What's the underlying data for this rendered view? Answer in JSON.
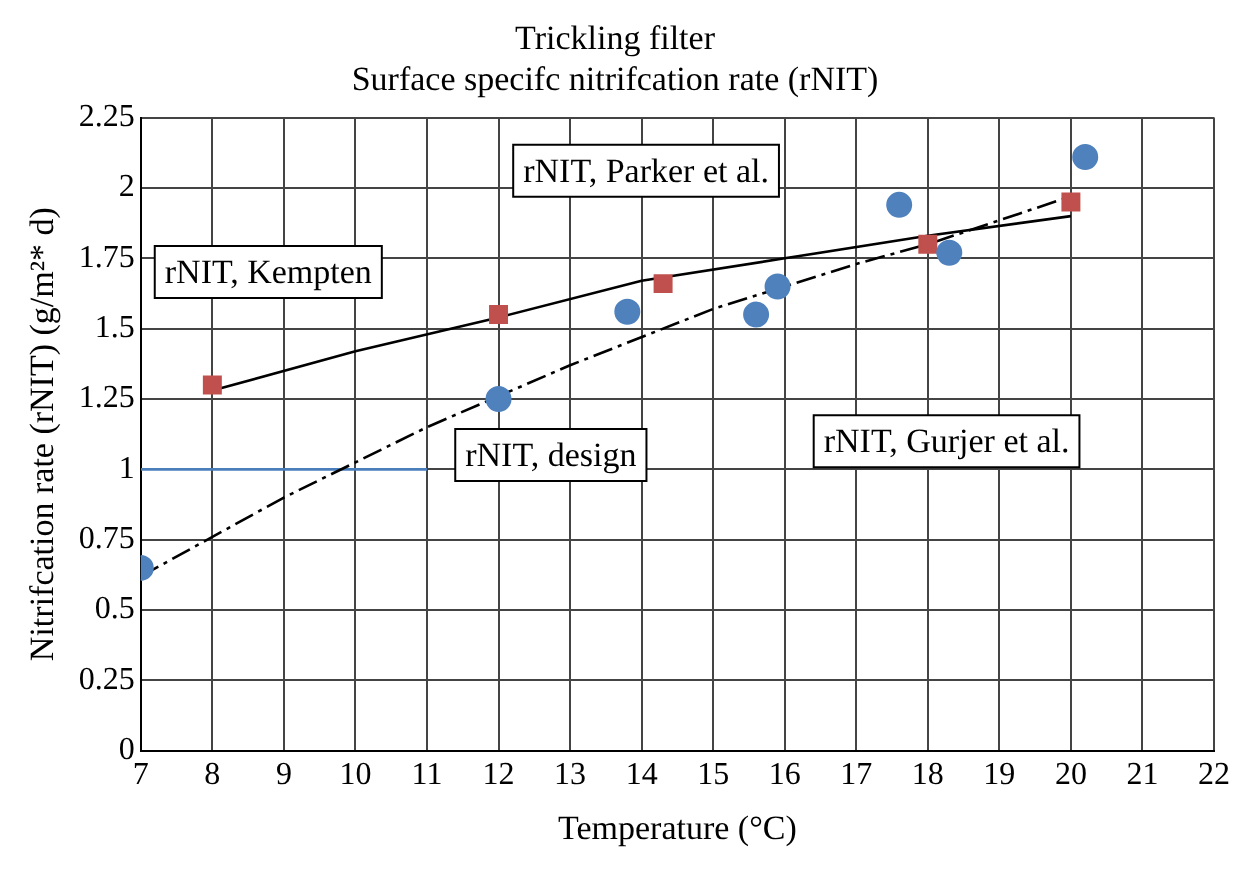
{
  "chart_data": {
    "type": "scatter",
    "title": "Trickling filter",
    "subtitle": "Surface specifc nitrifcation rate (rNIT)",
    "xlabel": "Temperature (°C)",
    "ylabel": "Nitrifcation rate (rNIT) (g/m²* d)",
    "xlim": [
      7,
      22
    ],
    "xticks": [
      7,
      8,
      9,
      10,
      11,
      12,
      13,
      14,
      15,
      16,
      17,
      18,
      19,
      20,
      21,
      22
    ],
    "ylim": [
      0,
      2.25
    ],
    "yticks": [
      0,
      0.25,
      0.5,
      0.75,
      1,
      1.25,
      1.5,
      1.75,
      2,
      2.25
    ],
    "grid": true,
    "legend": false,
    "annotations": [
      "rNIT, Kempten",
      "rNIT, Parker et al.",
      "rNIT, design",
      "rNIT, Gurjer et al."
    ],
    "series": [
      {
        "marker": "circle",
        "color": "#4f81bd",
        "x": [
          7,
          12,
          13.8,
          15.6,
          15.9,
          17.6,
          18.3,
          20.2
        ],
        "values": [
          0.65,
          1.25,
          1.56,
          1.55,
          1.65,
          1.94,
          1.77,
          2.11
        ]
      },
      {
        "marker": "square",
        "color": "#c0504d",
        "x": [
          8,
          12,
          14.3,
          18,
          20
        ],
        "values": [
          1.3,
          1.55,
          1.66,
          1.8,
          1.95
        ]
      },
      {
        "type": "line",
        "marker": "none",
        "line_style": "solid",
        "color": "#000000",
        "x": [
          8,
          10,
          12,
          14,
          16,
          18,
          20
        ],
        "values": [
          1.28,
          1.42,
          1.54,
          1.67,
          1.75,
          1.83,
          1.9
        ]
      },
      {
        "type": "line",
        "marker": "none",
        "line_style": "dashed",
        "color": "#000000",
        "x": [
          7,
          9,
          11,
          13,
          15,
          17,
          18,
          20
        ],
        "values": [
          0.62,
          0.9,
          1.15,
          1.37,
          1.57,
          1.73,
          1.8,
          1.97
        ]
      },
      {
        "type": "line",
        "marker": "none",
        "line_style": "solid",
        "color": "#4a7ebb",
        "x": [
          7,
          11
        ],
        "values": [
          1,
          1
        ]
      }
    ]
  }
}
